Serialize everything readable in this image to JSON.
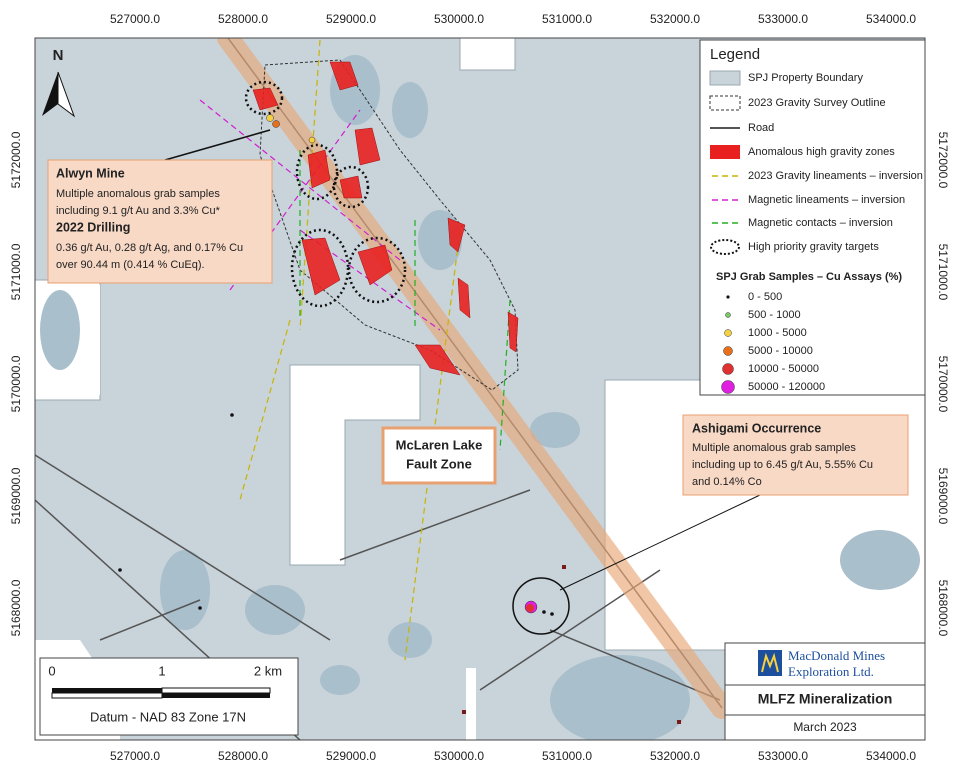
{
  "map": {
    "x_labels": [
      "527000.0",
      "528000.0",
      "529000.0",
      "530000.0",
      "531000.0",
      "532000.0",
      "533000.0",
      "534000.0"
    ],
    "y_labels": [
      "5172000.0",
      "5171000.0",
      "5170000.0",
      "5169000.0",
      "5168000.0"
    ],
    "north": "N",
    "legend": {
      "title": "Legend",
      "items": [
        "SPJ Property Boundary",
        "2023 Gravity Survey Outline",
        "Road",
        "Anomalous high gravity zones",
        "2023 Gravity lineaments – inversion",
        "Magnetic lineaments – inversion",
        "Magnetic contacts – inversion",
        "High priority gravity targets"
      ],
      "samples_title": "SPJ Grab Samples – Cu Assays (%)",
      "samples": [
        {
          "label": "0 - 500",
          "color": "#111111"
        },
        {
          "label": "500 - 1000",
          "color": "#7cc96a"
        },
        {
          "label": "1000 - 5000",
          "color": "#f5d040"
        },
        {
          "label": "5000 - 10000",
          "color": "#e8701c"
        },
        {
          "label": "10000 - 50000",
          "color": "#e03030"
        },
        {
          "label": "50000 - 120000",
          "color": "#e020e0"
        }
      ]
    },
    "alwyn": {
      "title": "Alwyn Mine",
      "lines": [
        "Multiple anomalous grab samples",
        "including 9.1 g/t Au and 3.3% Cu*"
      ],
      "drilling_title": "2022 Drilling",
      "drilling_lines": [
        "0.36 g/t Au, 0.28 g/t Ag, and 0.17% Cu",
        "over 90.44 m (0.414 % CuEq)."
      ]
    },
    "ashigami": {
      "title": "Ashigami Occurrence",
      "lines": [
        "Multiple anomalous grab samples",
        "including up to 6.45 g/t Au, 5.55% Cu",
        "and 0.14% Co"
      ]
    },
    "fault": [
      "McLaren Lake",
      "Fault Zone"
    ],
    "scale": {
      "labels": [
        "0",
        "1",
        "2 km"
      ],
      "datum": "Datum - NAD 83 Zone 17N"
    },
    "company": [
      "MacDonald Mines",
      "Exploration Ltd."
    ],
    "title": "MLFZ Mineralization",
    "date": "March 2023"
  }
}
